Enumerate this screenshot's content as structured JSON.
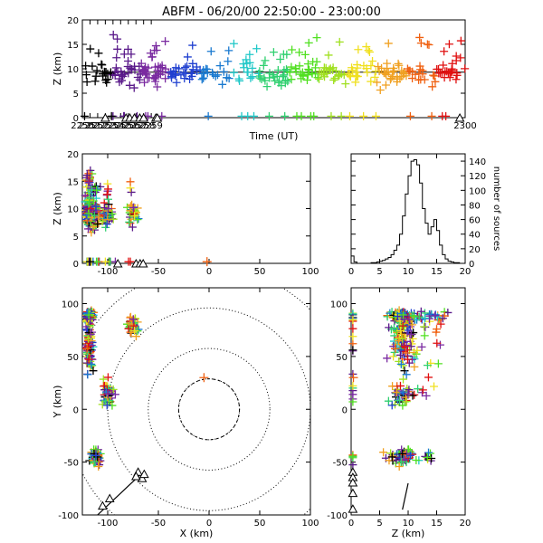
{
  "title": "ABFM - 06/20/00 22:50:00 - 23:00:00",
  "colors": {
    "palette": [
      "#000000",
      "#5a1a8a",
      "#7a2aa0",
      "#2040d0",
      "#1a7ad0",
      "#20c8c8",
      "#30d070",
      "#50e020",
      "#a0e020",
      "#f0e020",
      "#f0a020",
      "#f06010",
      "#e01010"
    ],
    "network": "#000000",
    "dotted": "#000000"
  },
  "chart_data": [
    {
      "id": "time-height",
      "type": "scatter",
      "xlabel": "Time (UT)",
      "ylabel": "Z (km)",
      "xlim": [
        2250,
        2300
      ],
      "ylim": [
        0,
        20
      ],
      "xticks": [
        "2250",
        "2251",
        "2252",
        "2253",
        "2254",
        "2255",
        "2256",
        "2257",
        "2258",
        "2259",
        "2300"
      ],
      "yticks": [
        "0",
        "5",
        "10",
        "15",
        "20"
      ],
      "reference_line_y": 9.3,
      "station_triangles_x": [
        2253.0,
        2255.7,
        2256.2,
        2256.8,
        2257.5,
        2258.0,
        2259.6,
        2259.8,
        2299.3
      ],
      "note": "points are colour-coded by time"
    },
    {
      "id": "x-z",
      "type": "scatter",
      "xlabel": "",
      "ylabel": "Z (km)",
      "xlim": [
        -125,
        100
      ],
      "ylim": [
        0,
        20
      ],
      "xticks": [
        "-100",
        "-50",
        "0",
        "50",
        "100"
      ],
      "yticks": [
        "0",
        "5",
        "10",
        "15",
        "20"
      ]
    },
    {
      "id": "histogram",
      "type": "bar",
      "xlabel": "",
      "ylabel": "number of sources",
      "xlim": [
        0,
        20
      ],
      "ylim": [
        0,
        150
      ],
      "xticks": [
        "0",
        "5",
        "10",
        "15",
        "20"
      ],
      "yticks": [
        "0",
        "20",
        "40",
        "60",
        "80",
        "100",
        "120",
        "140"
      ],
      "bins_km": [
        0,
        0.5,
        1,
        1.5,
        2,
        2.5,
        3,
        3.5,
        4,
        4.5,
        5,
        5.5,
        6,
        6.5,
        7,
        7.5,
        8,
        8.5,
        9,
        9.5,
        10,
        10.5,
        11,
        11.5,
        12,
        12.5,
        13,
        13.5,
        14,
        14.5,
        15,
        15.5,
        16,
        16.5,
        17,
        17.5,
        18,
        18.5,
        19,
        19.5
      ],
      "counts": [
        10,
        2,
        0,
        0,
        0,
        0,
        0,
        1,
        1,
        2,
        3,
        4,
        6,
        8,
        12,
        18,
        25,
        40,
        65,
        95,
        120,
        140,
        142,
        135,
        110,
        75,
        55,
        40,
        50,
        60,
        45,
        25,
        12,
        6,
        3,
        2,
        1,
        1,
        0,
        0
      ]
    },
    {
      "id": "plan-view",
      "type": "scatter",
      "xlabel": "X (km)",
      "ylabel": "Y (km)",
      "xlim": [
        -125,
        100
      ],
      "ylim": [
        -100,
        115
      ],
      "xticks": [
        "-100",
        "-50",
        "0",
        "50",
        "100"
      ],
      "yticks": [
        "-100",
        "-50",
        "0",
        "50",
        "100"
      ],
      "range_rings_km": [
        30,
        60,
        100,
        140
      ]
    },
    {
      "id": "z-y",
      "type": "scatter",
      "xlabel": "Z (km)",
      "ylabel": "",
      "xlim": [
        0,
        20
      ],
      "ylim": [
        -100,
        115
      ],
      "xticks": [
        "0",
        "5",
        "10",
        "15",
        "20"
      ],
      "yticks": [
        "-100",
        "-50",
        "0",
        "50",
        "100"
      ]
    }
  ]
}
